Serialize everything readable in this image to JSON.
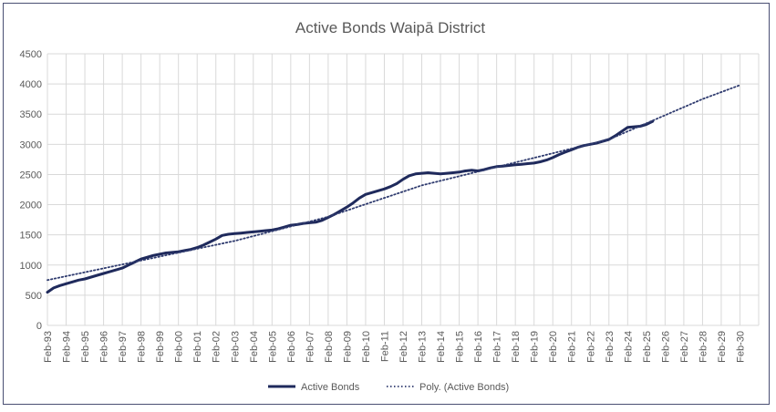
{
  "chart_data": {
    "type": "line",
    "title": "Active Bonds Waipā District",
    "xlabel": "",
    "ylabel": "",
    "ylim": [
      0,
      4500
    ],
    "yticks": [
      0,
      500,
      1000,
      1500,
      2000,
      2500,
      3000,
      3500,
      4000,
      4500
    ],
    "xlim": [
      "Feb-93",
      "Feb-31"
    ],
    "x_tick_labels": [
      "Feb-93",
      "Feb-94",
      "Feb-95",
      "Feb-96",
      "Feb-97",
      "Feb-98",
      "Feb-99",
      "Feb-00",
      "Feb-01",
      "Feb-02",
      "Feb-03",
      "Feb-04",
      "Feb-05",
      "Feb-06",
      "Feb-07",
      "Feb-08",
      "Feb-09",
      "Feb-10",
      "Feb-11",
      "Feb-12",
      "Feb-13",
      "Feb-14",
      "Feb-15",
      "Feb-16",
      "Feb-17",
      "Feb-18",
      "Feb-19",
      "Feb-20",
      "Feb-21",
      "Feb-22",
      "Feb-23",
      "Feb-24",
      "Feb-25",
      "Feb-26",
      "Feb-27",
      "Feb-28",
      "Feb-29",
      "Feb-30"
    ],
    "grid": true,
    "legend_position": "bottom",
    "series": [
      {
        "name": "Active Bonds",
        "color": "#1f2a5c",
        "style": "solid",
        "x": [
          "1993-02",
          "1993-06",
          "1993-10",
          "1994-02",
          "1994-06",
          "1994-10",
          "1995-02",
          "1995-06",
          "1995-10",
          "1996-02",
          "1996-06",
          "1996-10",
          "1997-02",
          "1997-06",
          "1997-10",
          "1998-02",
          "1998-06",
          "1998-10",
          "1999-02",
          "1999-06",
          "1999-10",
          "2000-02",
          "2000-06",
          "2000-10",
          "2001-02",
          "2001-06",
          "2001-10",
          "2002-02",
          "2002-06",
          "2002-10",
          "2003-02",
          "2003-06",
          "2003-10",
          "2004-02",
          "2004-06",
          "2004-10",
          "2005-02",
          "2005-06",
          "2005-10",
          "2006-02",
          "2006-06",
          "2006-10",
          "2007-02",
          "2007-06",
          "2007-10",
          "2008-02",
          "2008-06",
          "2008-10",
          "2009-02",
          "2009-06",
          "2009-10",
          "2010-02",
          "2010-06",
          "2010-10",
          "2011-02",
          "2011-06",
          "2011-10",
          "2012-02",
          "2012-06",
          "2012-10",
          "2013-02",
          "2013-06",
          "2013-10",
          "2014-02",
          "2014-06",
          "2014-10",
          "2015-02",
          "2015-06",
          "2015-10",
          "2016-02",
          "2016-06",
          "2016-10",
          "2017-02",
          "2017-06",
          "2017-10",
          "2018-02",
          "2018-06",
          "2018-10",
          "2019-02",
          "2019-06",
          "2019-10",
          "2020-02",
          "2020-06",
          "2020-10",
          "2021-02",
          "2021-06",
          "2021-10",
          "2022-02",
          "2022-06",
          "2022-10",
          "2023-02",
          "2023-06",
          "2023-10",
          "2024-02",
          "2024-06",
          "2024-10",
          "2025-02",
          "2025-06"
        ],
        "values": [
          550,
          620,
          660,
          690,
          720,
          750,
          770,
          800,
          830,
          860,
          890,
          920,
          950,
          1000,
          1050,
          1100,
          1130,
          1160,
          1180,
          1200,
          1210,
          1220,
          1240,
          1260,
          1290,
          1330,
          1380,
          1430,
          1490,
          1510,
          1520,
          1530,
          1540,
          1550,
          1560,
          1570,
          1580,
          1600,
          1630,
          1660,
          1670,
          1690,
          1700,
          1710,
          1740,
          1790,
          1840,
          1900,
          1960,
          2030,
          2110,
          2170,
          2200,
          2230,
          2260,
          2300,
          2350,
          2420,
          2480,
          2510,
          2520,
          2530,
          2520,
          2510,
          2520,
          2530,
          2540,
          2560,
          2570,
          2560,
          2580,
          2610,
          2630,
          2640,
          2650,
          2660,
          2670,
          2680,
          2690,
          2710,
          2740,
          2780,
          2830,
          2870,
          2910,
          2950,
          2980,
          3000,
          3020,
          3050,
          3080,
          3140,
          3210,
          3280,
          3290,
          3300,
          3330,
          3380
        ]
      },
      {
        "name": "Poly. (Active Bonds)",
        "color": "#2e3a6e",
        "style": "dotted",
        "x": [
          "1993-02",
          "1998-02",
          "2003-02",
          "2008-02",
          "2013-02",
          "2018-02",
          "2023-02",
          "2028-02",
          "2030-02"
        ],
        "values": [
          750,
          1075,
          1400,
          1800,
          2320,
          2700,
          3080,
          3750,
          3980
        ]
      }
    ]
  }
}
